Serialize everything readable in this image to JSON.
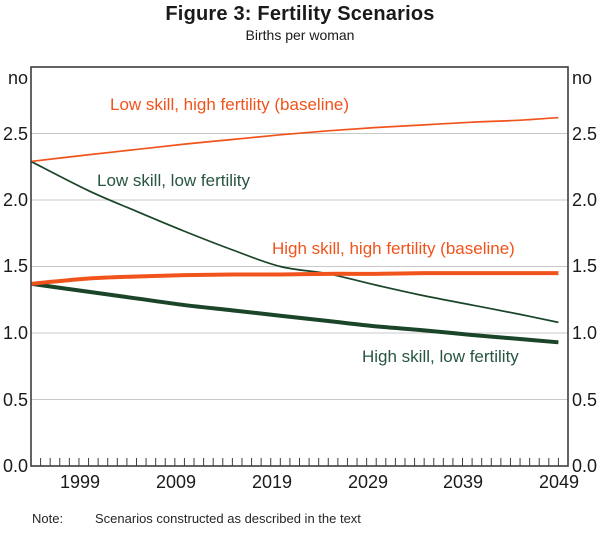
{
  "note": {
    "label": "Note:",
    "text": "Scenarios constructed as described in the text"
  },
  "chart_data": {
    "type": "line",
    "title": "Figure 3: Fertility Scenarios",
    "subtitle": "Births per woman",
    "unit_label": "no",
    "grid": "horizontal-only",
    "legend_position": "inline-annotations",
    "x_axis": {
      "range": [
        1994,
        2050
      ],
      "tick_years": [
        1999,
        2009,
        2019,
        2029,
        2039,
        2049
      ],
      "tick_labels": [
        "1999",
        "2009",
        "2019",
        "2029",
        "2039",
        "2049"
      ],
      "minor_tick_step_years": 1
    },
    "y_axis": {
      "range": [
        0,
        3
      ],
      "tick_values": [
        2.5,
        2.0,
        1.5,
        1.0,
        0.5,
        0.0
      ],
      "tick_labels": [
        "2.5",
        "2.0",
        "1.5",
        "1.0",
        "0.5",
        "0.0"
      ],
      "gridline_values": [
        2.5,
        2.0,
        1.5,
        1.0,
        0.5
      ]
    },
    "colors": {
      "orange": "#f0541c",
      "green": "#1a4528",
      "green_label": "#27553f",
      "grid": "#c8c8c8",
      "frame": "#3d3d3d"
    },
    "x": [
      1994,
      2000,
      2005,
      2010,
      2015,
      2020,
      2025,
      2030,
      2035,
      2040,
      2045,
      2049
    ],
    "series": [
      {
        "name": "Low skill, high fertility (baseline)",
        "color": "orange",
        "thickness": "thin",
        "values": [
          2.29,
          2.34,
          2.38,
          2.42,
          2.455,
          2.49,
          2.52,
          2.545,
          2.565,
          2.585,
          2.6,
          2.62
        ]
      },
      {
        "name": "Low skill, low fertility",
        "color": "green",
        "thickness": "thin",
        "values": [
          2.29,
          2.07,
          1.915,
          1.765,
          1.625,
          1.5,
          1.445,
          1.36,
          1.28,
          1.21,
          1.14,
          1.08
        ]
      },
      {
        "name": "High skill, high fertility (baseline)",
        "color": "orange",
        "thickness": "thick",
        "values": [
          1.37,
          1.41,
          1.425,
          1.435,
          1.44,
          1.44,
          1.445,
          1.445,
          1.45,
          1.45,
          1.45,
          1.45
        ]
      },
      {
        "name": "High skill, low fertility",
        "color": "green",
        "thickness": "thick",
        "values": [
          1.37,
          1.31,
          1.26,
          1.21,
          1.17,
          1.13,
          1.09,
          1.05,
          1.02,
          0.985,
          0.955,
          0.93
        ]
      }
    ]
  }
}
